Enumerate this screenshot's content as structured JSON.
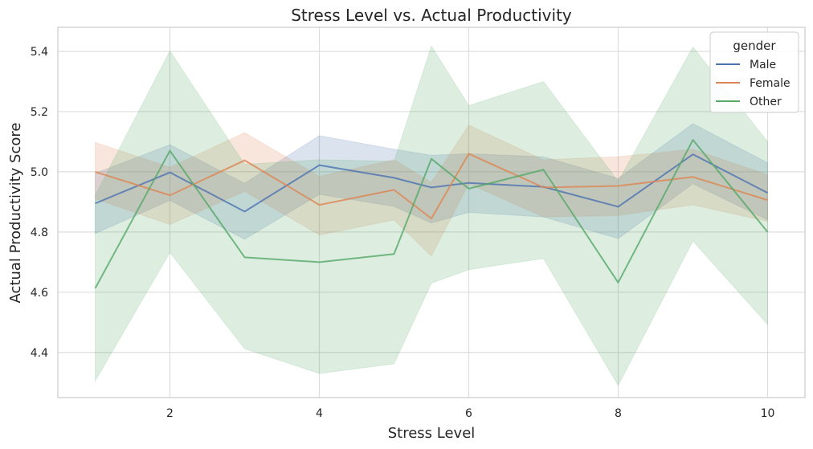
{
  "chart_data": {
    "type": "line",
    "title": "Stress Level vs. Actual Productivity",
    "xlabel": "Stress Level",
    "ylabel": "Actual Productivity Score",
    "xlim": [
      0.5,
      10.5
    ],
    "ylim": [
      4.25,
      5.48
    ],
    "xticks": [
      2,
      4,
      6,
      8,
      10
    ],
    "yticks": [
      4.4,
      4.6,
      4.8,
      5.0,
      5.2,
      5.4
    ],
    "grid": true,
    "legend": {
      "title": "gender",
      "position": "top-right"
    },
    "series": [
      {
        "name": "Male",
        "color": "#4c72b0",
        "x": [
          1,
          2,
          3,
          4,
          5,
          5.5,
          6,
          7,
          8,
          9,
          10
        ],
        "y": [
          4.895,
          4.998,
          4.868,
          5.022,
          4.98,
          4.948,
          4.963,
          4.95,
          4.884,
          5.058,
          4.93
        ],
        "ci_lower": [
          4.795,
          4.905,
          4.776,
          4.925,
          4.885,
          4.83,
          4.865,
          4.85,
          4.778,
          4.96,
          4.84
        ],
        "ci_upper": [
          4.995,
          5.09,
          4.962,
          5.12,
          5.075,
          5.055,
          5.06,
          5.05,
          4.978,
          5.16,
          5.03
        ]
      },
      {
        "name": "Female",
        "color": "#dd8452",
        "x": [
          1,
          2,
          3,
          4,
          5,
          5.5,
          6,
          7,
          8,
          9,
          10
        ],
        "y": [
          5.0,
          4.922,
          5.038,
          4.89,
          4.94,
          4.845,
          5.06,
          4.948,
          4.953,
          4.983,
          4.906
        ],
        "ci_lower": [
          4.91,
          4.825,
          4.935,
          4.79,
          4.84,
          4.72,
          4.96,
          4.85,
          4.855,
          4.89,
          4.835
        ],
        "ci_upper": [
          5.098,
          5.015,
          5.13,
          4.985,
          5.04,
          4.965,
          5.155,
          5.04,
          5.05,
          5.075,
          4.99
        ]
      },
      {
        "name": "Other",
        "color": "#55a868",
        "x": [
          1,
          2,
          3,
          4,
          5,
          5.5,
          6,
          7,
          8,
          9,
          10
        ],
        "y": [
          4.613,
          5.07,
          4.716,
          4.7,
          4.727,
          5.043,
          4.944,
          5.007,
          4.632,
          5.106,
          4.8
        ],
        "ci_lower": [
          4.305,
          4.732,
          4.412,
          4.33,
          4.362,
          4.63,
          4.675,
          4.712,
          4.29,
          4.77,
          4.493
        ],
        "ci_upper": [
          4.922,
          5.402,
          5.025,
          5.04,
          5.035,
          5.418,
          5.22,
          5.3,
          4.968,
          5.415,
          5.1
        ]
      }
    ]
  }
}
